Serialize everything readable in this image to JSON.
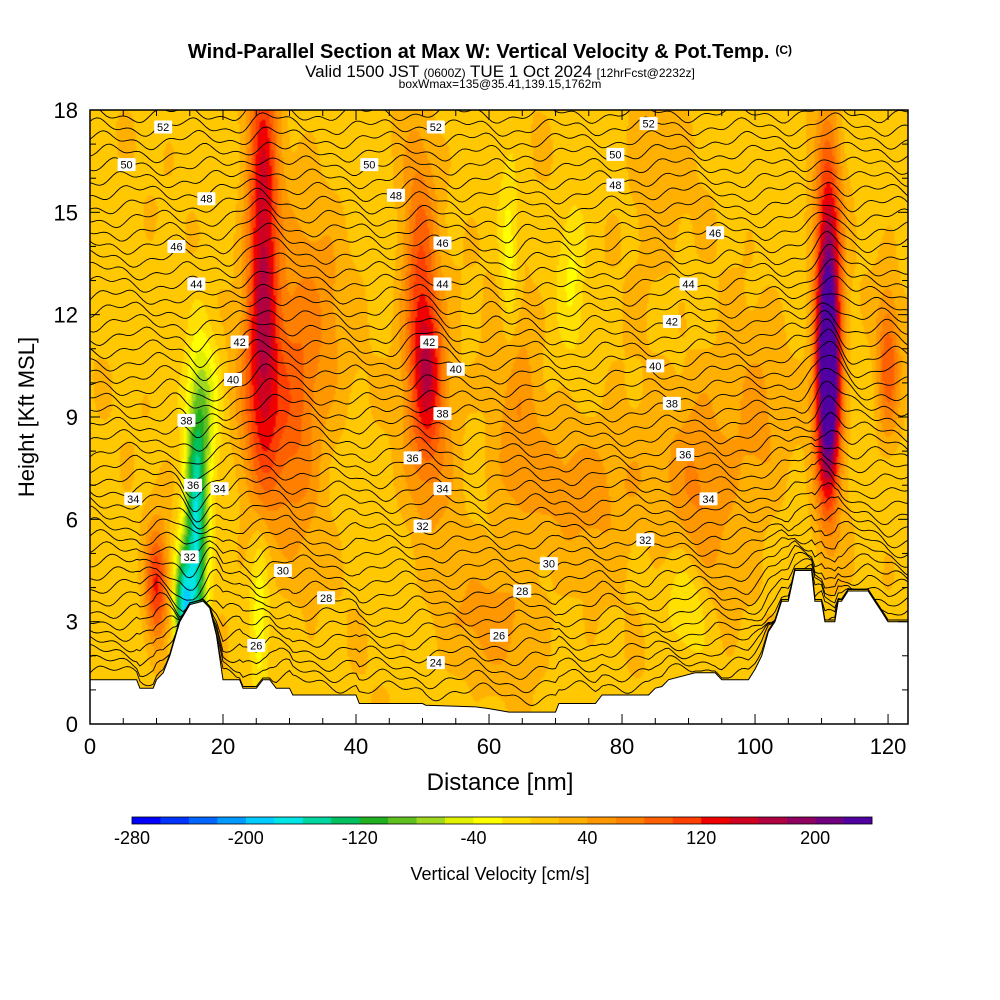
{
  "chart_data": {
    "type": "heatmap",
    "title": "Wind-Parallel Section at Max W: Vertical Velocity & Pot.Temp.",
    "title_mark": "(C)",
    "subtitle": {
      "part1": "Valid 1500 JST",
      "part2": "(0600Z)",
      "part3": "TUE 1 Oct 2024",
      "part4": "[12hrFcst@2232z]"
    },
    "subtitle2": "boxWmax=135@35.41,139.15,1762m",
    "xlabel": "Distance [nm]",
    "ylabel": "Height [Kft MSL]",
    "xlim": [
      0,
      123
    ],
    "ylim": [
      0,
      18
    ],
    "xticks": [
      0,
      20,
      40,
      60,
      80,
      100,
      120
    ],
    "yticks": [
      0,
      3,
      6,
      9,
      12,
      15,
      18
    ],
    "colorbar": {
      "label": "Vertical Velocity [cm/s]",
      "range": [
        -280,
        240
      ],
      "step": 20,
      "ticks": [
        -280,
        -200,
        -120,
        -40,
        40,
        120,
        200
      ],
      "colors": [
        "#0000ff",
        "#0033ff",
        "#0066ff",
        "#0099ff",
        "#00ccff",
        "#00e5e5",
        "#00d6a0",
        "#00c060",
        "#20b020",
        "#60c020",
        "#a0d820",
        "#e0f000",
        "#ffff00",
        "#ffe000",
        "#ffc800",
        "#ffb000",
        "#ff9800",
        "#ff8000",
        "#ff6000",
        "#ff4000",
        "#f00000",
        "#d00020",
        "#b00040",
        "#900060",
        "#700080",
        "#5000a0"
      ]
    },
    "terrain_kft": [
      [
        0,
        1.3
      ],
      [
        7,
        1.3
      ],
      [
        7.5,
        1.05
      ],
      [
        9.5,
        1.05
      ],
      [
        10,
        1.3
      ],
      [
        11,
        1.5
      ],
      [
        12,
        2.0
      ],
      [
        13.5,
        3.0
      ],
      [
        15,
        3.5
      ],
      [
        17,
        3.6
      ],
      [
        18,
        3.4
      ],
      [
        19,
        2.6
      ],
      [
        20,
        1.3
      ],
      [
        22.5,
        1.3
      ],
      [
        23,
        1.05
      ],
      [
        25,
        1.05
      ],
      [
        26,
        1.3
      ],
      [
        27,
        1.3
      ],
      [
        28,
        1.05
      ],
      [
        30,
        1.05
      ],
      [
        30.5,
        0.85
      ],
      [
        38,
        0.85
      ],
      [
        40,
        0.85
      ],
      [
        40.5,
        0.6
      ],
      [
        50,
        0.6
      ],
      [
        50.5,
        0.55
      ],
      [
        58,
        0.5
      ],
      [
        60,
        0.45
      ],
      [
        63,
        0.35
      ],
      [
        68,
        0.35
      ],
      [
        70,
        0.35
      ],
      [
        70.5,
        0.6
      ],
      [
        76,
        0.6
      ],
      [
        77,
        0.85
      ],
      [
        84,
        0.85
      ],
      [
        85,
        1.05
      ],
      [
        86,
        1.1
      ],
      [
        87,
        1.3
      ],
      [
        91,
        1.5
      ],
      [
        94,
        1.5
      ],
      [
        95,
        1.3
      ],
      [
        99,
        1.3
      ],
      [
        100,
        1.6
      ],
      [
        101,
        2.0
      ],
      [
        102,
        2.7
      ],
      [
        103,
        3.0
      ],
      [
        104,
        3.6
      ],
      [
        105,
        3.6
      ],
      [
        106,
        4.5
      ],
      [
        108.5,
        4.5
      ],
      [
        109,
        3.6
      ],
      [
        110,
        3.6
      ],
      [
        110.5,
        3.0
      ],
      [
        112,
        3.0
      ],
      [
        112.5,
        3.6
      ],
      [
        113,
        3.6
      ],
      [
        114,
        3.9
      ],
      [
        117,
        3.9
      ],
      [
        118,
        3.6
      ],
      [
        119,
        3.3
      ],
      [
        120,
        3.0
      ],
      [
        123,
        3.0
      ]
    ],
    "updrafts": [
      {
        "x": 26,
        "y": 14.5,
        "sx": 1.6,
        "sy": 3.8,
        "w": 140
      },
      {
        "x": 26,
        "y": 9.5,
        "sx": 2.5,
        "sy": 2.5,
        "w": 70
      },
      {
        "x": 31,
        "y": 9.5,
        "sx": 2.5,
        "sy": 3.0,
        "w": 60
      },
      {
        "x": 49.5,
        "y": 12.5,
        "sx": 1.8,
        "sy": 3.0,
        "w": 90
      },
      {
        "x": 51,
        "y": 10.5,
        "sx": 1.5,
        "sy": 1.5,
        "w": 80
      },
      {
        "x": 52,
        "y": 8.5,
        "sx": 2.5,
        "sy": 2.0,
        "w": 40
      },
      {
        "x": 10,
        "y": 4.0,
        "sx": 1.2,
        "sy": 1.2,
        "w": 110
      },
      {
        "x": 111,
        "y": 12.0,
        "sx": 1.3,
        "sy": 3.2,
        "w": 210
      },
      {
        "x": 111,
        "y": 9.5,
        "sx": 1.2,
        "sy": 2.0,
        "w": 140
      },
      {
        "x": 120,
        "y": 10.5,
        "sx": 1.2,
        "sy": 1.5,
        "w": 80
      },
      {
        "x": 76,
        "y": 7.0,
        "sx": 8.0,
        "sy": 1.5,
        "w": 35
      },
      {
        "x": 92,
        "y": 7.0,
        "sx": 3.0,
        "sy": 2.5,
        "w": 40
      },
      {
        "x": 35,
        "y": 11.5,
        "sx": 3.0,
        "sy": 2.5,
        "w": 30
      },
      {
        "x": 64,
        "y": 9.5,
        "sx": 2.5,
        "sy": 3.0,
        "w": 35
      },
      {
        "x": 100,
        "y": 8.5,
        "sx": 3.0,
        "sy": 2.0,
        "w": 35
      },
      {
        "x": 85,
        "y": 15.5,
        "sx": 3.0,
        "sy": 2.0,
        "w": 25
      },
      {
        "x": 60,
        "y": 3.0,
        "sx": 6.0,
        "sy": 1.2,
        "w": 30
      }
    ],
    "downdrafts": [
      {
        "x": 16,
        "y": 5.5,
        "sx": 1.2,
        "sy": 2.8,
        "w": -180
      },
      {
        "x": 14,
        "y": 3.5,
        "sx": 1.0,
        "sy": 1.2,
        "w": -160
      },
      {
        "x": 17.5,
        "y": 9.5,
        "sx": 1.5,
        "sy": 1.5,
        "w": -60
      },
      {
        "x": 25.5,
        "y": 3.0,
        "sx": 1.0,
        "sy": 2.0,
        "w": -50
      },
      {
        "x": 63,
        "y": 13.5,
        "sx": 1.0,
        "sy": 2.0,
        "w": -50
      },
      {
        "x": 72.5,
        "y": 13.5,
        "sx": 1.5,
        "sy": 1.5,
        "w": -40
      },
      {
        "x": 90,
        "y": 3.5,
        "sx": 2.0,
        "sy": 1.0,
        "w": -40
      }
    ],
    "contour_labels": [
      {
        "x": 11,
        "y": 17.5,
        "v": "52"
      },
      {
        "x": 52,
        "y": 17.5,
        "v": "52"
      },
      {
        "x": 84,
        "y": 17.6,
        "v": "52"
      },
      {
        "x": 5.5,
        "y": 16.4,
        "v": "50"
      },
      {
        "x": 42,
        "y": 16.4,
        "v": "50"
      },
      {
        "x": 79,
        "y": 16.7,
        "v": "50"
      },
      {
        "x": 17.5,
        "y": 15.4,
        "v": "48"
      },
      {
        "x": 46,
        "y": 15.5,
        "v": "48"
      },
      {
        "x": 79,
        "y": 15.8,
        "v": "48"
      },
      {
        "x": 13,
        "y": 14.0,
        "v": "46"
      },
      {
        "x": 53,
        "y": 14.1,
        "v": "46"
      },
      {
        "x": 94,
        "y": 14.4,
        "v": "46"
      },
      {
        "x": 16,
        "y": 12.9,
        "v": "44"
      },
      {
        "x": 53,
        "y": 12.9,
        "v": "44"
      },
      {
        "x": 90,
        "y": 12.9,
        "v": "44"
      },
      {
        "x": 22.5,
        "y": 11.2,
        "v": "42"
      },
      {
        "x": 51,
        "y": 11.2,
        "v": "42"
      },
      {
        "x": 87.5,
        "y": 11.8,
        "v": "42"
      },
      {
        "x": 21.5,
        "y": 10.1,
        "v": "40"
      },
      {
        "x": 55,
        "y": 10.4,
        "v": "40"
      },
      {
        "x": 85,
        "y": 10.5,
        "v": "40"
      },
      {
        "x": 14.5,
        "y": 8.9,
        "v": "38"
      },
      {
        "x": 53,
        "y": 9.1,
        "v": "38"
      },
      {
        "x": 87.5,
        "y": 9.4,
        "v": "38"
      },
      {
        "x": 48.5,
        "y": 7.8,
        "v": "36"
      },
      {
        "x": 89.5,
        "y": 7.9,
        "v": "36"
      },
      {
        "x": 15.5,
        "y": 7.0,
        "v": "36"
      },
      {
        "x": 6.5,
        "y": 6.6,
        "v": "34"
      },
      {
        "x": 19.5,
        "y": 6.9,
        "v": "34"
      },
      {
        "x": 53,
        "y": 6.9,
        "v": "34"
      },
      {
        "x": 93,
        "y": 6.6,
        "v": "34"
      },
      {
        "x": 50,
        "y": 5.8,
        "v": "32"
      },
      {
        "x": 83.5,
        "y": 5.4,
        "v": "32"
      },
      {
        "x": 15,
        "y": 4.9,
        "v": "32"
      },
      {
        "x": 29,
        "y": 4.5,
        "v": "30"
      },
      {
        "x": 69,
        "y": 4.7,
        "v": "30"
      },
      {
        "x": 35.5,
        "y": 3.7,
        "v": "28"
      },
      {
        "x": 65,
        "y": 3.9,
        "v": "28"
      },
      {
        "x": 25,
        "y": 2.3,
        "v": "26"
      },
      {
        "x": 61.5,
        "y": 2.6,
        "v": "26"
      },
      {
        "x": 52,
        "y": 1.8,
        "v": "24"
      }
    ]
  }
}
